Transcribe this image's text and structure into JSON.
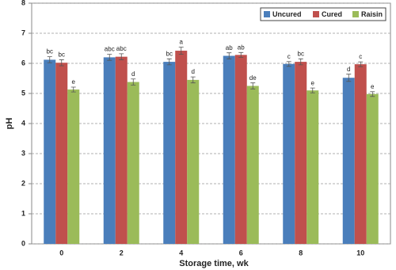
{
  "chart_data": {
    "type": "bar",
    "x_label": "Storage time, wk",
    "y_label": "pH",
    "categories": [
      "0",
      "2",
      "4",
      "6",
      "8",
      "10"
    ],
    "series": [
      {
        "name": "Uncured",
        "color": "#4a7ebb",
        "values": [
          6.12,
          6.2,
          6.05,
          6.25,
          5.98,
          5.52
        ],
        "errors": [
          0.1,
          0.1,
          0.1,
          0.1,
          0.08,
          0.12
        ],
        "annotations": [
          "bc",
          "abc",
          "bc",
          "ab",
          "c",
          "d"
        ]
      },
      {
        "name": "Cured",
        "color": "#c0504d",
        "values": [
          6.02,
          6.22,
          6.42,
          6.28,
          6.05,
          5.97
        ],
        "errors": [
          0.1,
          0.1,
          0.12,
          0.08,
          0.1,
          0.08
        ],
        "annotations": [
          "bc",
          "abc",
          "a",
          "ab",
          "bc",
          "c"
        ]
      },
      {
        "name": "Raisin",
        "color": "#9bbb59",
        "values": [
          5.13,
          5.38,
          5.45,
          5.25,
          5.1,
          4.98
        ],
        "errors": [
          0.08,
          0.1,
          0.1,
          0.1,
          0.08,
          0.08
        ],
        "annotations": [
          "e",
          "d",
          "d",
          "de",
          "e",
          "e"
        ]
      }
    ],
    "ylim": [
      0,
      8
    ],
    "yticks": [
      0,
      1,
      2,
      3,
      4,
      5,
      6,
      7,
      8
    ],
    "grid": true,
    "legend": "upper right"
  }
}
